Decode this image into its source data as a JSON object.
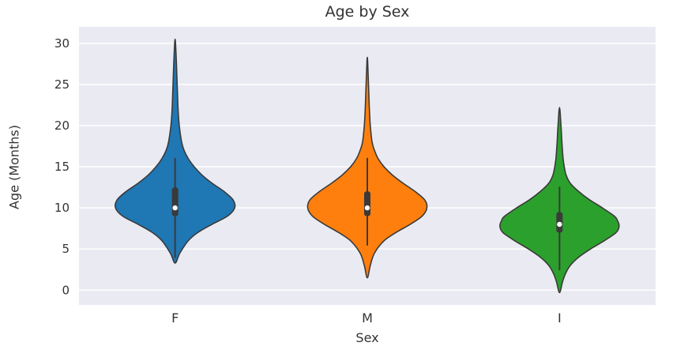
{
  "chart_data": {
    "type": "violin",
    "title": "Age by Sex",
    "xlabel": "Sex",
    "ylabel": "Age (Months)",
    "categories": [
      "F",
      "M",
      "I"
    ],
    "yticks": [
      0,
      5,
      10,
      15,
      20,
      25,
      30
    ],
    "ylim": [
      -1.8,
      32
    ],
    "grid": true,
    "legend": false,
    "plot_background": "#eaeaf2",
    "gridline_color": "#ffffff",
    "edge_color": "#3a3a3a",
    "inner_box_color": "#3a3a3a",
    "median_dot_color": "#ffffff",
    "text_color": "#333333",
    "series": [
      {
        "name": "F",
        "color": "#1f77b4",
        "median": 10,
        "q1": 9,
        "q3": 12.5,
        "whisker_low": 4,
        "whisker_high": 16,
        "min": 3.3,
        "max": 30.5,
        "profile": [
          [
            3.3,
            0
          ],
          [
            4.5,
            0.08
          ],
          [
            6,
            0.22
          ],
          [
            7,
            0.38
          ],
          [
            8,
            0.62
          ],
          [
            9,
            0.88
          ],
          [
            10,
            1.0
          ],
          [
            11,
            0.97
          ],
          [
            12,
            0.82
          ],
          [
            13,
            0.62
          ],
          [
            14,
            0.45
          ],
          [
            15,
            0.32
          ],
          [
            16,
            0.22
          ],
          [
            17,
            0.15
          ],
          [
            18,
            0.11
          ],
          [
            20,
            0.07
          ],
          [
            22,
            0.05
          ],
          [
            24,
            0.04
          ],
          [
            26,
            0.03
          ],
          [
            28,
            0.02
          ],
          [
            30.5,
            0
          ]
        ]
      },
      {
        "name": "M",
        "color": "#ff7f0e",
        "median": 10,
        "q1": 9,
        "q3": 12,
        "whisker_low": 5.5,
        "whisker_high": 16,
        "min": 1.5,
        "max": 28.3,
        "profile": [
          [
            1.5,
            0
          ],
          [
            3,
            0.05
          ],
          [
            4.5,
            0.12
          ],
          [
            6,
            0.28
          ],
          [
            7,
            0.48
          ],
          [
            8,
            0.72
          ],
          [
            9,
            0.92
          ],
          [
            10,
            1.0
          ],
          [
            11,
            0.96
          ],
          [
            12,
            0.8
          ],
          [
            13,
            0.6
          ],
          [
            14,
            0.42
          ],
          [
            15,
            0.28
          ],
          [
            16,
            0.18
          ],
          [
            17,
            0.12
          ],
          [
            18,
            0.08
          ],
          [
            20,
            0.05
          ],
          [
            22,
            0.035
          ],
          [
            24,
            0.025
          ],
          [
            26,
            0.015
          ],
          [
            28.3,
            0
          ]
        ]
      },
      {
        "name": "I",
        "color": "#2ca02c",
        "median": 8,
        "q1": 7,
        "q3": 9.5,
        "whisker_low": 2.5,
        "whisker_high": 12.5,
        "min": -0.3,
        "max": 22.2,
        "profile": [
          [
            -0.3,
            0
          ],
          [
            1,
            0.05
          ],
          [
            2,
            0.1
          ],
          [
            3,
            0.18
          ],
          [
            4,
            0.32
          ],
          [
            5,
            0.52
          ],
          [
            6,
            0.75
          ],
          [
            7,
            0.95
          ],
          [
            7.8,
            1.0
          ],
          [
            8.5,
            0.97
          ],
          [
            9,
            0.92
          ],
          [
            10,
            0.72
          ],
          [
            11,
            0.5
          ],
          [
            12,
            0.32
          ],
          [
            13,
            0.18
          ],
          [
            14,
            0.11
          ],
          [
            15,
            0.08
          ],
          [
            16,
            0.06
          ],
          [
            18,
            0.04
          ],
          [
            20,
            0.025
          ],
          [
            22.2,
            0
          ]
        ]
      }
    ]
  }
}
